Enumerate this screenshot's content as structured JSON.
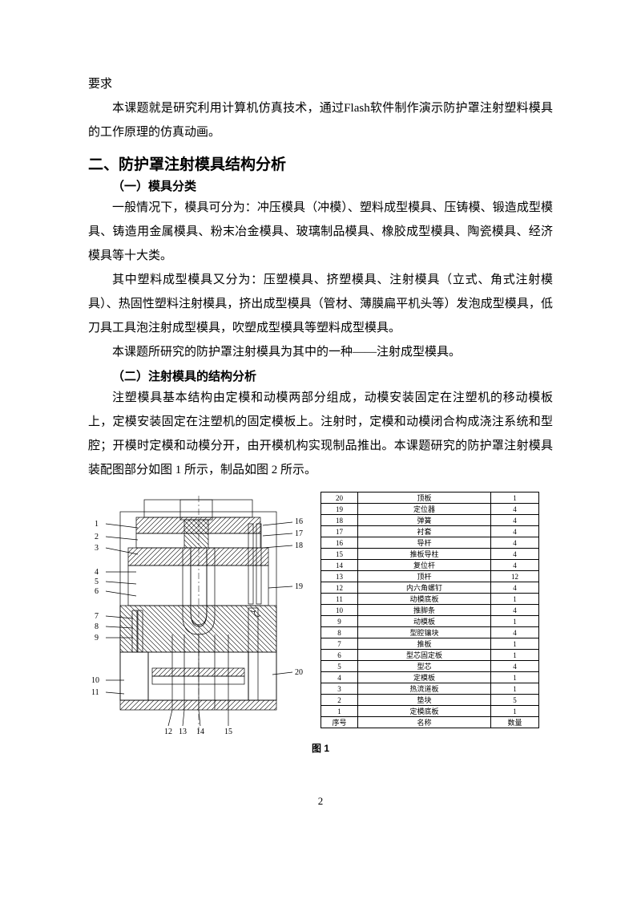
{
  "p1": "要求",
  "p2": "本课题就是研究利用计算机仿真技术，通过Flash软件制作演示防护罩注射塑料模具的工作原理的仿真动画。",
  "h2": "二、防护罩注射模具结构分析",
  "h3a": "（一）模具分类",
  "p3": "一般情况下，模具可分为：冲压模具（冲模）、塑料成型模具、压铸模、锻造成型模具、铸造用金属模具、粉末冶金模具、玻璃制品模具、橡胶成型模具、陶瓷模具、经济模具等十大类。",
  "p4": "其中塑料成型模具又分为：压塑模具、挤塑模具、注射模具（立式、角式注射模具）、热固性塑料注射模具，挤出成型模具（管材、薄膜扁平机头等）发泡成型模具，低刀具工具泡注射成型模具，吹塑成型模具等塑料成型模具。",
  "p5": "本课题所研究的防护罩注射模具为其中的一种——注射成型模具。",
  "h3b": "（二）注射模具的结构分析",
  "p6": "注塑模具基本结构由定模和动模两部分组成，动模安装固定在注塑机的移动模板上，定模安装固定在注塑机的固定模板上。注射时，定模和动模闭合构成浇注系统和型腔；开模时定模和动模分开，由开模机构实现制品推出。本课题研究的防护罩注射模具装配图部分如图 1 所示，制品如图 2 所示。",
  "fig_caption": "图 1",
  "page_number": "2",
  "parts_table": {
    "header": [
      "序号",
      "名称",
      "数量"
    ],
    "rows": [
      [
        "20",
        "顶板",
        "1"
      ],
      [
        "19",
        "定位器",
        "4"
      ],
      [
        "18",
        "弹簧",
        "4"
      ],
      [
        "17",
        "衬套",
        "4"
      ],
      [
        "16",
        "导杆",
        "4"
      ],
      [
        "15",
        "推板导柱",
        "4"
      ],
      [
        "14",
        "复位杆",
        "4"
      ],
      [
        "13",
        "顶杆",
        "12"
      ],
      [
        "12",
        "内六角螺钉",
        "4"
      ],
      [
        "11",
        "动模底板",
        "1"
      ],
      [
        "10",
        "推脚条",
        "4"
      ],
      [
        "9",
        "动模板",
        "1"
      ],
      [
        "8",
        "型腔镶块",
        "4"
      ],
      [
        "7",
        "推板",
        "1"
      ],
      [
        "6",
        "型芯固定板",
        "1"
      ],
      [
        "5",
        "型芯",
        "4"
      ],
      [
        "4",
        "定模板",
        "1"
      ],
      [
        "3",
        "热流道板",
        "1"
      ],
      [
        "2",
        "垫块",
        "5"
      ],
      [
        "1",
        "定模底板",
        "1"
      ]
    ]
  },
  "diagram": {
    "left_labels": [
      "1",
      "2",
      "3",
      "4",
      "5",
      "6",
      "7",
      "8",
      "9",
      "10",
      "11"
    ],
    "right_labels": [
      "16",
      "17",
      "18",
      "19",
      "20"
    ],
    "bottom_labels": [
      "12",
      "13",
      "14",
      "15"
    ],
    "colors": {
      "body": "#c9c9c9",
      "dark": "#7a7a7a",
      "bg": "#ffffff",
      "line": "#000000"
    }
  }
}
